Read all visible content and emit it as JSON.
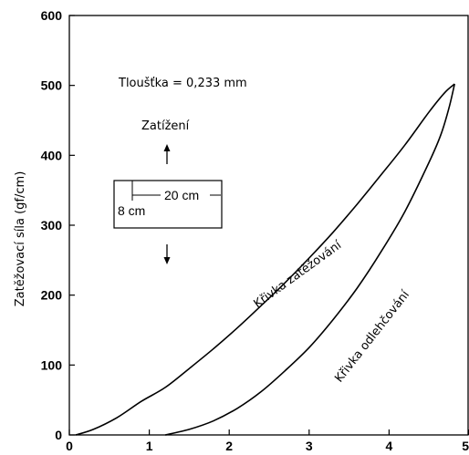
{
  "chart_data": {
    "type": "line",
    "title": "",
    "xlabel": "",
    "ylabel": "Zatěžovací síla (gf/cm)",
    "xlim": [
      0,
      5
    ],
    "ylim": [
      0,
      600
    ],
    "xticks": [
      0,
      1,
      2,
      3,
      4,
      5
    ],
    "yticks": [
      0,
      100,
      200,
      300,
      400,
      500,
      600
    ],
    "xtick_labels": [
      "0",
      "1",
      "2",
      "3",
      "4",
      "5"
    ],
    "ytick_labels": [
      "0",
      "100",
      "200",
      "300",
      "400",
      "500",
      "600"
    ],
    "grid": false,
    "series": [
      {
        "name": "Křivka zatěžování",
        "x": [
          0.08,
          0.3,
          0.6,
          0.9,
          1.2,
          1.5,
          1.8,
          2.1,
          2.4,
          2.7,
          3.0,
          3.3,
          3.6,
          3.9,
          4.2,
          4.5,
          4.7,
          4.82
        ],
        "y": [
          0,
          8,
          25,
          48,
          68,
          95,
          123,
          153,
          185,
          218,
          253,
          290,
          330,
          372,
          415,
          462,
          490,
          502
        ]
      },
      {
        "name": "Křivka odlehčování",
        "x": [
          1.2,
          1.5,
          1.8,
          2.1,
          2.4,
          2.7,
          3.0,
          3.3,
          3.6,
          3.9,
          4.2,
          4.5,
          4.65,
          4.75,
          4.82
        ],
        "y": [
          0,
          8,
          20,
          38,
          62,
          92,
          125,
          165,
          210,
          262,
          320,
          390,
          430,
          468,
          502
        ]
      }
    ],
    "annotations": {
      "thickness": "Tloušťka = 0,233 mm",
      "load_label": "Zatížení",
      "loading_curve_label": "Křivka zatěžování",
      "unloading_curve_label": "Křivka odlehčování",
      "inset_width_label": "20 cm",
      "inset_height_label": "8 cm"
    }
  }
}
